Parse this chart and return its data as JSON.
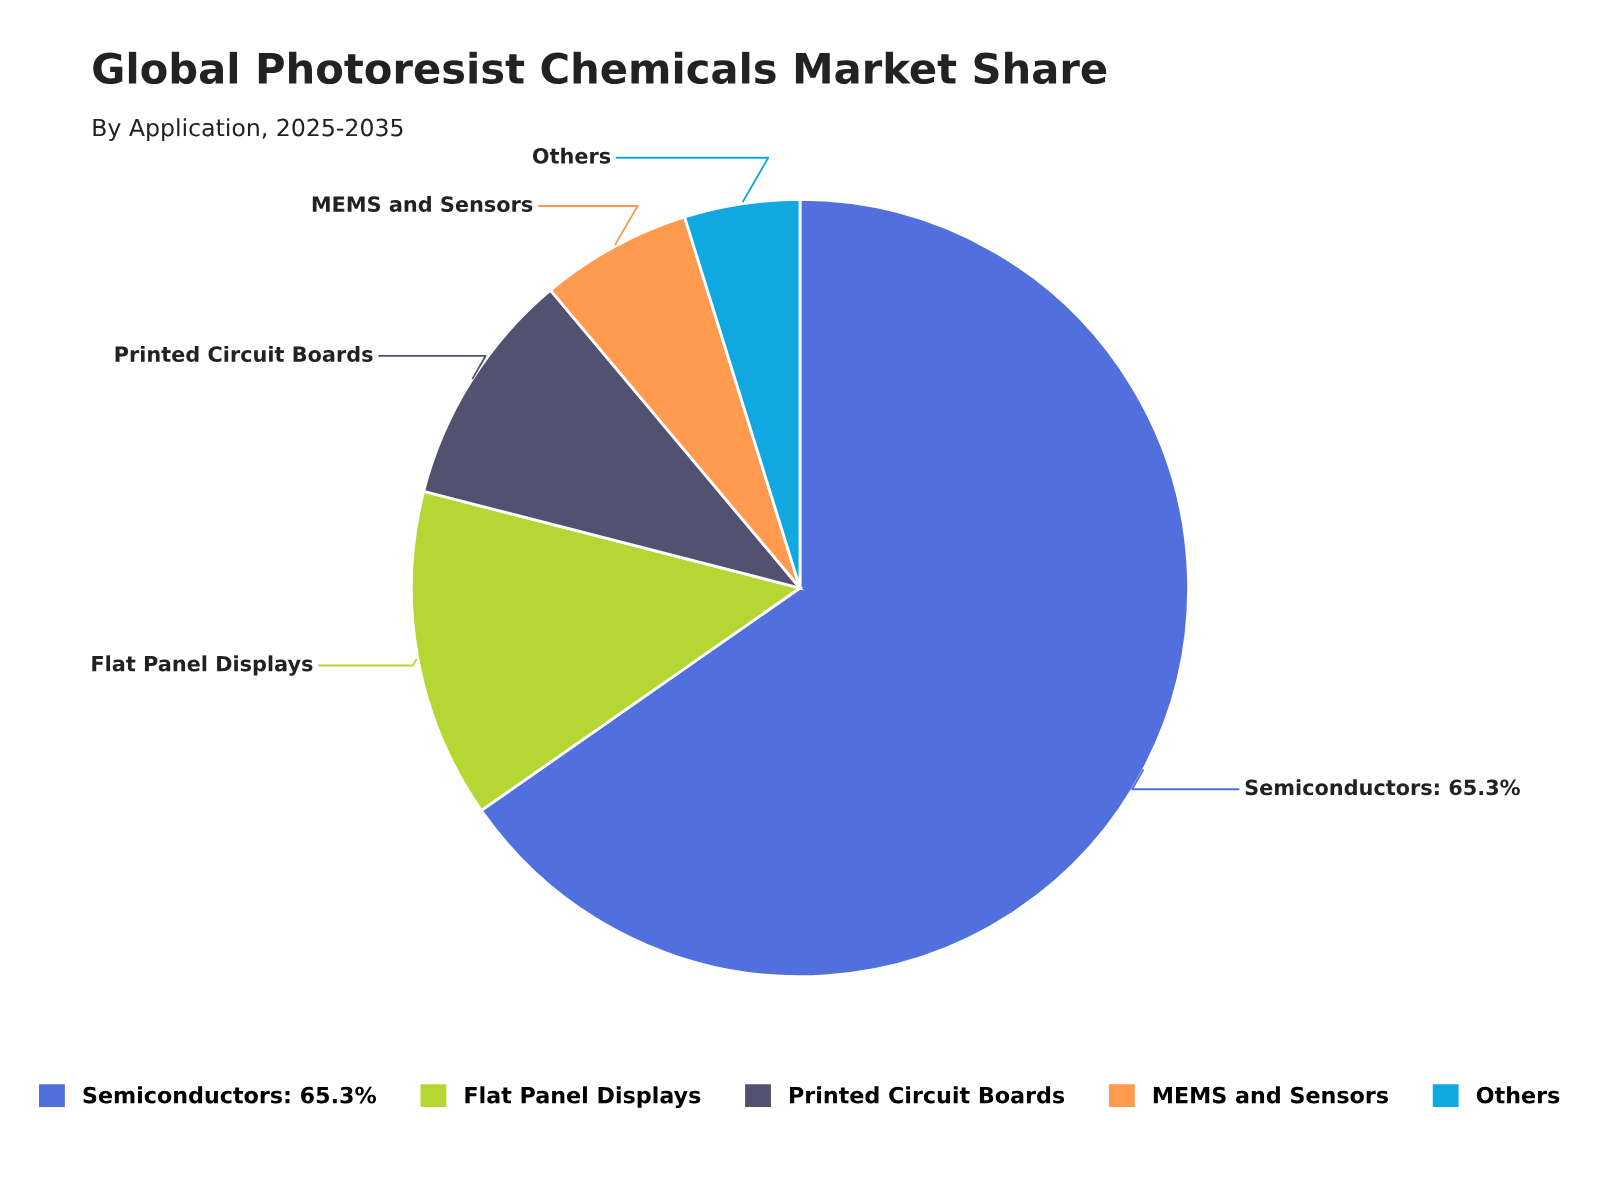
{
  "chart_data": {
    "type": "pie",
    "title": "Global Photoresist Chemicals Market Share",
    "subtitle": "By Application, 2025-2035",
    "categories": [
      "Semiconductors: 65.3%",
      "Flat Panel Displays",
      "Printed Circuit Boards",
      "MEMS and Sensors",
      "Others"
    ],
    "values": [
      65.3,
      13.7,
      9.9,
      6.3,
      4.8
    ],
    "colors": [
      "#5170dd",
      "#b5d733",
      "#525270",
      "#ff9a4f",
      "#10a8e0"
    ],
    "legend": "bottom"
  }
}
